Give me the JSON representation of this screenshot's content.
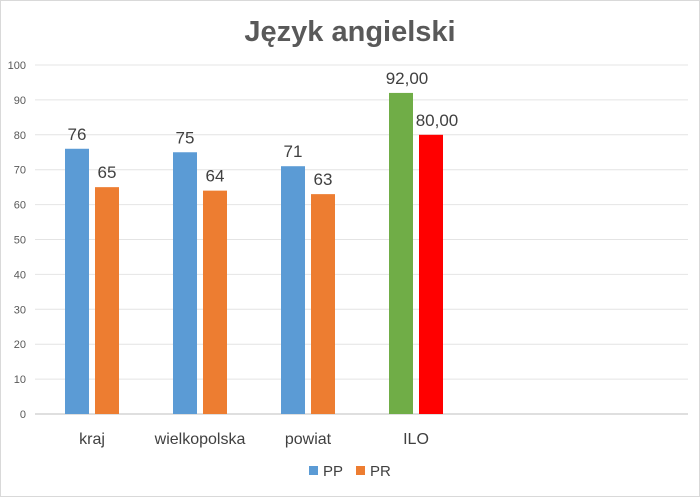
{
  "chart_data": {
    "type": "bar",
    "title": "Język angielski",
    "xlabel": "",
    "ylabel": "",
    "ylim": [
      0,
      100
    ],
    "yticks": [
      "0",
      "10",
      "20",
      "30",
      "40",
      "50",
      "60",
      "70",
      "80",
      "90",
      "100"
    ],
    "grid": true,
    "legend_position": "bottom",
    "categories": [
      "kraj",
      "wielkopolska",
      "powiat",
      "ILO"
    ],
    "series": [
      {
        "name": "PP",
        "color": "#5B9BD5",
        "values": [
          76,
          75,
          71,
          92
        ],
        "labels": [
          "76",
          "75",
          "71",
          "92,00"
        ],
        "point_colors": [
          "#5B9BD5",
          "#5B9BD5",
          "#5B9BD5",
          "#70AD47"
        ]
      },
      {
        "name": "PR",
        "color": "#ED7D31",
        "values": [
          65,
          64,
          63,
          80
        ],
        "labels": [
          "65",
          "64",
          "63",
          "80,00"
        ],
        "point_colors": [
          "#ED7D31",
          "#ED7D31",
          "#ED7D31",
          "#FF0000"
        ]
      }
    ]
  }
}
